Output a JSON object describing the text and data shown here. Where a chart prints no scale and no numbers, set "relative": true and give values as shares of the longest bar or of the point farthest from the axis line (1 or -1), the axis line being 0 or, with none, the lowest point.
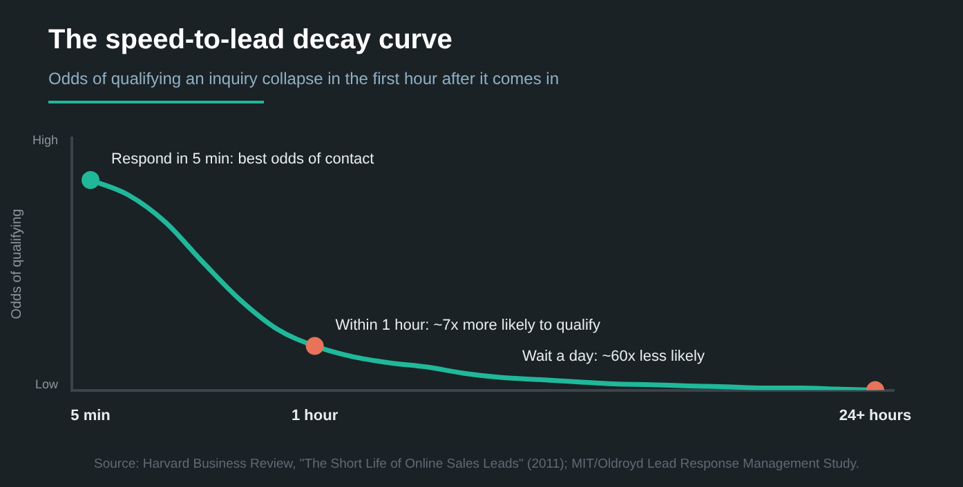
{
  "chart_data": {
    "type": "line",
    "title": "The speed-to-lead decay curve",
    "subtitle": "Odds of qualifying an inquiry collapse in the first hour after it comes in",
    "ylabel": "Odds of qualifying",
    "categories": [
      "5 min",
      null,
      null,
      null,
      null,
      null,
      "1 hour",
      null,
      null,
      null,
      null,
      null,
      null,
      null,
      null,
      null,
      null,
      null,
      null,
      null,
      null,
      "24+ hours"
    ],
    "series": [
      {
        "color": "#1fb89a",
        "marker": "none",
        "values": [
          1,
          0.93,
          0.8,
          0.61,
          0.43,
          0.29,
          0.21,
          0.16,
          0.13,
          0.11,
          0.08,
          0.06,
          0.05,
          0.04,
          0.03,
          0.026,
          0.02,
          0.016,
          0.01,
          0.01,
          0.005,
          0
        ]
      },
      {
        "type": "scatter",
        "marker": "circle",
        "colors": [
          "#1fb89a",
          "#e8735a",
          "#e8735a"
        ],
        "x": [
          "5 min",
          "1 hour",
          "24+ hours"
        ],
        "values": [
          1,
          0.21,
          0
        ]
      }
    ],
    "relative": true,
    "grid": false,
    "legend": false,
    "annotations": [
      "High",
      "Low",
      {
        "text": "Respond in 5 min: best odds of contact",
        "x": "5 min",
        "y": 1
      },
      {
        "text": "Within 1 hour: ~7x more likely to qualify",
        "x": "1 hour",
        "y": 0.21
      },
      {
        "text": "Wait a day: ~60x less likely",
        "y": 0.06
      },
      "Source: Harvard Business Review, \"The Short Life of Online Sales Leads\" (2011); MIT/Oldroyd Lead Response Management Study."
    ]
  }
}
